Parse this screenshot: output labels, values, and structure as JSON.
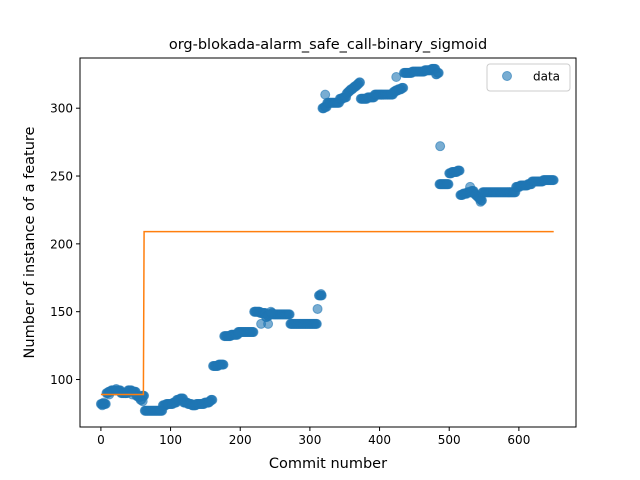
{
  "chart_data": {
    "type": "scatter",
    "title": "org-blokada-alarm_safe_call-binary_sigmoid",
    "xlabel": "Commit number",
    "ylabel": "Number of instance of a feature",
    "xlim": [
      -30,
      682
    ],
    "ylim": [
      65,
      337
    ],
    "xticks": [
      0,
      100,
      200,
      300,
      400,
      500,
      600
    ],
    "yticks": [
      100,
      150,
      200,
      250,
      300
    ],
    "grid": false,
    "legend": {
      "placement": "top-right",
      "entries": [
        "data"
      ]
    },
    "colors": {
      "data": "#1f77b4",
      "fit": "#ff7f0e"
    },
    "series": [
      {
        "name": "data",
        "kind": "scatter",
        "segments": [
          [
            0,
            7,
            82,
            82
          ],
          [
            8,
            14,
            90,
            91
          ],
          [
            15,
            28,
            92,
            92
          ],
          [
            29,
            38,
            90,
            90
          ],
          [
            39,
            50,
            92,
            91
          ],
          [
            51,
            56,
            88,
            87
          ],
          [
            57,
            58,
            85,
            85
          ],
          [
            59,
            62,
            88,
            88
          ],
          [
            63,
            88,
            77,
            77
          ],
          [
            89,
            108,
            81,
            83
          ],
          [
            109,
            118,
            85,
            86
          ],
          [
            119,
            130,
            83,
            82
          ],
          [
            131,
            155,
            81,
            83
          ],
          [
            156,
            160,
            84,
            85
          ],
          [
            161,
            176,
            110,
            111
          ],
          [
            177,
            196,
            132,
            133
          ],
          [
            197,
            219,
            135,
            135
          ],
          [
            220,
            236,
            150,
            149
          ],
          [
            237,
            246,
            146,
            149
          ],
          [
            247,
            271,
            148,
            148
          ],
          [
            272,
            310,
            141,
            141
          ],
          [
            313,
            317,
            162,
            162
          ],
          [
            318,
            324,
            300,
            301
          ],
          [
            325,
            342,
            304,
            304
          ],
          [
            343,
            352,
            307,
            308
          ],
          [
            353,
            372,
            311,
            319
          ],
          [
            373,
            392,
            307,
            308
          ],
          [
            393,
            419,
            310,
            310
          ],
          [
            420,
            434,
            312,
            315
          ],
          [
            435,
            458,
            326,
            327
          ],
          [
            459,
            480,
            327,
            329
          ],
          [
            481,
            485,
            325,
            326
          ],
          [
            486,
            499,
            244,
            244
          ],
          [
            500,
            515,
            252,
            254
          ],
          [
            516,
            535,
            236,
            239
          ],
          [
            536,
            547,
            237,
            232
          ],
          [
            548,
            595,
            238,
            238
          ],
          [
            596,
            618,
            242,
            244
          ],
          [
            619,
            650,
            246,
            247
          ]
        ],
        "extra_points": [
          [
            2,
            81
          ],
          [
            4,
            83
          ],
          [
            12,
            89
          ],
          [
            22,
            93
          ],
          [
            45,
            89
          ],
          [
            60,
            84
          ],
          [
            198,
            134
          ],
          [
            230,
            141
          ],
          [
            240,
            141
          ],
          [
            244,
            150
          ],
          [
            311,
            152
          ],
          [
            316,
            163
          ],
          [
            322,
            310
          ],
          [
            424,
            323
          ],
          [
            487,
            272
          ],
          [
            530,
            242
          ],
          [
            545,
            231
          ]
        ]
      },
      {
        "name": "",
        "kind": "line",
        "x": [
          0,
          61,
          62,
          650
        ],
        "y": [
          89,
          89,
          209,
          209
        ]
      }
    ]
  }
}
